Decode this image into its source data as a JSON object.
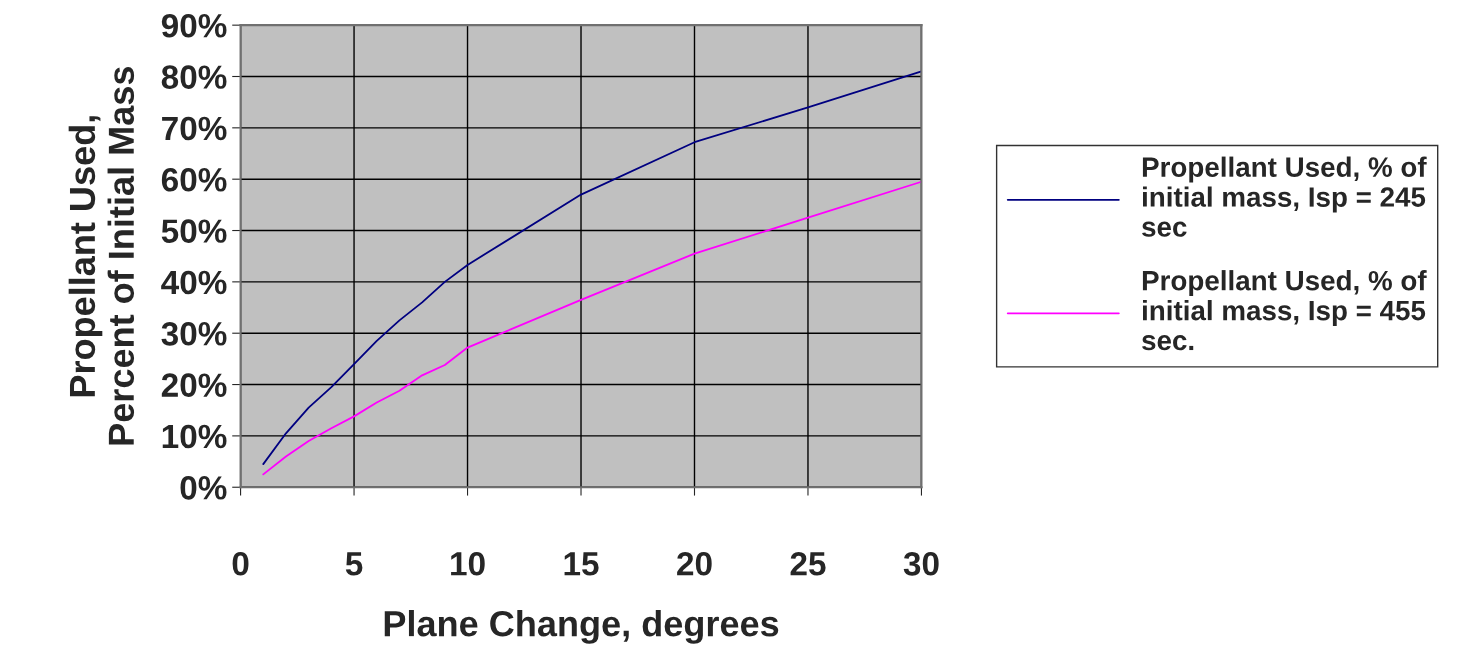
{
  "chart_data": {
    "type": "line",
    "xlabel": "Plane Change, degrees",
    "ylabel": "Propellant Used,\nPercent of Initial Mass",
    "x": [
      1,
      2,
      3,
      4,
      5,
      6,
      7,
      8,
      9,
      10,
      15,
      20,
      25,
      30
    ],
    "series": [
      {
        "name": "Propellant Used, % of initial mass, Isp = 245 sec",
        "color": "#000080",
        "values": [
          4.5,
          10.5,
          15.5,
          19.5,
          24,
          28.5,
          32.5,
          36,
          40,
          43.3,
          57,
          67.2,
          74,
          81
        ]
      },
      {
        "name": "Propellant Used, % of initial mass, Isp = 455 sec.",
        "color": "#ff00ff",
        "values": [
          2.5,
          6,
          9,
          11.5,
          13.8,
          16.5,
          18.8,
          21.8,
          23.8,
          27.2,
          36.5,
          45.5,
          52.5,
          59.5
        ]
      }
    ],
    "xlim": [
      0,
      30
    ],
    "xticks": [
      0,
      5,
      10,
      15,
      20,
      25,
      30
    ],
    "ylim": [
      0,
      90
    ],
    "yticks": [
      {
        "value": 0,
        "label": "0%"
      },
      {
        "value": 10,
        "label": "10%"
      },
      {
        "value": 20,
        "label": "20%"
      },
      {
        "value": 30,
        "label": "30%"
      },
      {
        "value": 40,
        "label": "40%"
      },
      {
        "value": 50,
        "label": "50%"
      },
      {
        "value": 60,
        "label": "60%"
      },
      {
        "value": 70,
        "label": "70%"
      },
      {
        "value": 80,
        "label": "80%"
      },
      {
        "value": 90,
        "label": "90%"
      }
    ],
    "grid": true,
    "legend": "right",
    "marker": "none",
    "line_style": "solid"
  }
}
